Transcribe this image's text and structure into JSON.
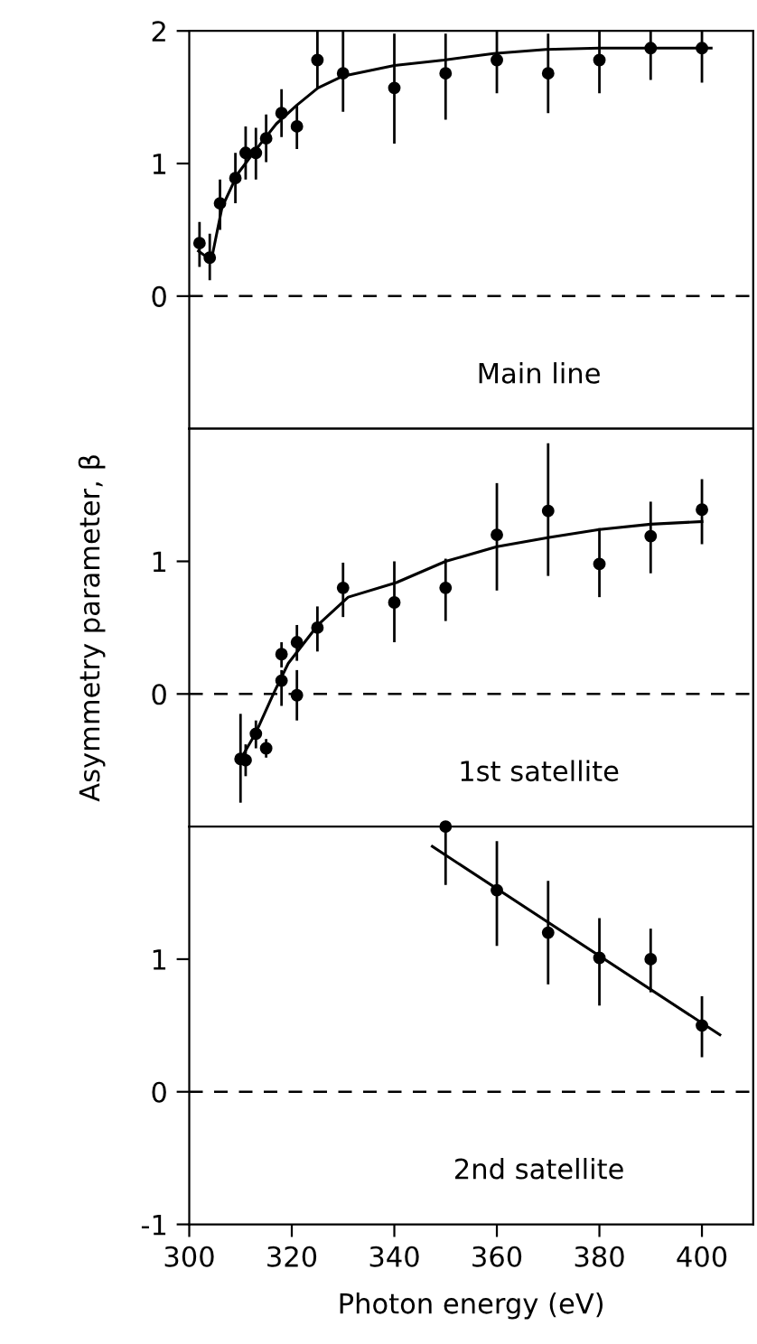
{
  "chart_data": [
    {
      "type": "scatter",
      "xlim": [
        300,
        410
      ],
      "ylim": [
        -1,
        2
      ],
      "yticks": [
        0,
        1,
        2
      ],
      "tick_labels": "y",
      "marker": "circle",
      "grid": false,
      "legend": false,
      "annotations": [
        "Main line"
      ],
      "ref_lines": [
        {
          "axis": "y",
          "value": 0,
          "line_style": "dashed",
          "color": "#000000"
        }
      ],
      "series": [
        {
          "color": "#000000",
          "x": [
            302,
            304,
            306,
            309,
            311,
            313,
            315,
            318,
            321,
            325,
            330,
            340,
            350,
            360,
            370,
            380,
            390,
            400
          ],
          "values": [
            0.4,
            0.29,
            0.7,
            0.89,
            1.08,
            1.08,
            1.19,
            1.38,
            1.28,
            1.78,
            1.68,
            1.57,
            1.68,
            1.78,
            1.68,
            1.78,
            1.87,
            1.87
          ],
          "errors": [
            [
              0.22,
              0.56
            ],
            [
              0.12,
              0.47
            ],
            [
              0.5,
              0.88
            ],
            [
              0.7,
              1.08
            ],
            [
              0.88,
              1.28
            ],
            [
              0.88,
              1.27
            ],
            [
              1.01,
              1.37
            ],
            [
              1.2,
              1.56
            ],
            [
              1.11,
              1.44
            ],
            [
              1.57,
              2.0
            ],
            [
              1.39,
              2.0
            ],
            [
              1.15,
              1.98
            ],
            [
              1.33,
              1.98
            ],
            [
              1.53,
              2.0
            ],
            [
              1.38,
              1.98
            ],
            [
              1.53,
              2.0
            ],
            [
              1.63,
              2.0
            ],
            [
              1.61,
              2.0
            ]
          ]
        },
        {
          "type": "line",
          "color": "#000000",
          "marker": "none",
          "x": [
            301.8,
            304.3,
            306.4,
            309.4,
            312.9,
            317,
            321,
            325.1,
            330,
            340,
            349.7,
            359.4,
            369.6,
            380,
            390,
            401.8
          ],
          "values": [
            0.34,
            0.27,
            0.67,
            0.92,
            1.1,
            1.3,
            1.44,
            1.57,
            1.66,
            1.74,
            1.78,
            1.83,
            1.86,
            1.87,
            1.87,
            1.87
          ]
        }
      ]
    },
    {
      "type": "scatter",
      "xlim": [
        300,
        410
      ],
      "ylim": [
        -1,
        2
      ],
      "yticks": [
        0,
        1
      ],
      "tick_labels": "y",
      "marker": "circle",
      "grid": false,
      "legend": false,
      "ylabel": "Asymmetry parameter, β",
      "annotations": [
        "1st satellite"
      ],
      "ref_lines": [
        {
          "axis": "y",
          "value": 0,
          "line_style": "dashed",
          "color": "#000000"
        }
      ],
      "series": [
        {
          "color": "#000000",
          "x": [
            310,
            311,
            313,
            315,
            318,
            318,
            321,
            321,
            325,
            330,
            340,
            350,
            360,
            370,
            380,
            390,
            400
          ],
          "values": [
            -0.49,
            -0.5,
            -0.3,
            -0.41,
            0.3,
            0.1,
            0.39,
            -0.01,
            0.5,
            0.8,
            0.69,
            0.8,
            1.2,
            1.38,
            0.98,
            1.19,
            1.39
          ],
          "errors": [
            [
              -0.82,
              -0.15
            ],
            [
              -0.62,
              -0.38
            ],
            [
              -0.41,
              -0.2
            ],
            [
              -0.48,
              -0.34
            ],
            [
              0.2,
              0.39
            ],
            [
              -0.09,
              0.18
            ],
            [
              0.25,
              0.52
            ],
            [
              -0.2,
              0.18
            ],
            [
              0.32,
              0.66
            ],
            [
              0.58,
              0.99
            ],
            [
              0.39,
              1.0
            ],
            [
              0.55,
              1.02
            ],
            [
              0.78,
              1.59
            ],
            [
              0.89,
              1.89
            ],
            [
              0.73,
              1.25
            ],
            [
              0.91,
              1.45
            ],
            [
              1.13,
              1.62
            ]
          ]
        },
        {
          "type": "line",
          "color": "#000000",
          "marker": "none",
          "x": [
            310.2,
            312.9,
            316.4,
            319.3,
            325.1,
            331,
            340.4,
            350,
            360,
            370.2,
            380,
            390,
            400
          ],
          "values": [
            -0.48,
            -0.3,
            0.0,
            0.23,
            0.52,
            0.73,
            0.84,
            1.0,
            1.11,
            1.18,
            1.24,
            1.28,
            1.3
          ]
        }
      ]
    },
    {
      "type": "scatter",
      "xlim": [
        300,
        410
      ],
      "ylim": [
        -1,
        2
      ],
      "xticks": [
        300,
        320,
        340,
        360,
        380,
        400
      ],
      "yticks": [
        -1,
        0,
        1
      ],
      "marker": "circle",
      "grid": false,
      "legend": false,
      "xlabel": "Photon energy (eV)",
      "annotations": [
        "2nd satellite"
      ],
      "ref_lines": [
        {
          "axis": "y",
          "value": 0,
          "line_style": "dashed",
          "color": "#000000"
        }
      ],
      "series": [
        {
          "color": "#000000",
          "x": [
            350,
            360,
            370,
            380,
            390,
            400
          ],
          "values": [
            2.0,
            1.52,
            1.2,
            1.01,
            1.0,
            0.5
          ],
          "errors": [
            [
              1.56,
              2.0
            ],
            [
              1.1,
              1.89
            ],
            [
              0.81,
              1.59
            ],
            [
              0.65,
              1.31
            ],
            [
              0.75,
              1.23
            ],
            [
              0.26,
              0.72
            ]
          ]
        },
        {
          "type": "line",
          "color": "#000000",
          "marker": "none",
          "x": [
            347.4,
            403.5
          ],
          "values": [
            1.85,
            0.43
          ]
        }
      ]
    }
  ]
}
